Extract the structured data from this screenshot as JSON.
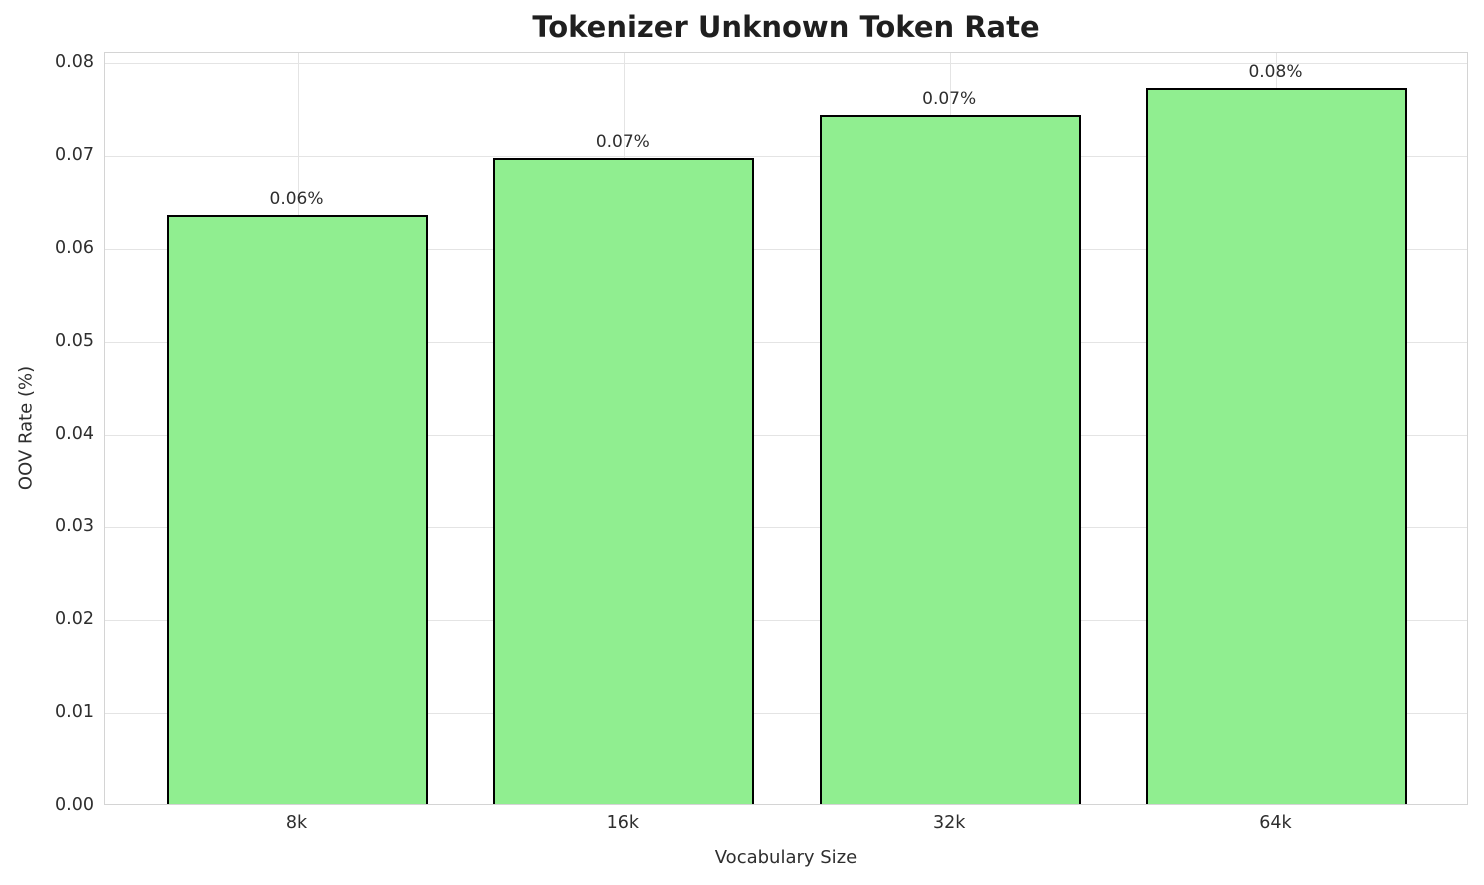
{
  "chart_data": {
    "type": "bar",
    "title": "Tokenizer Unknown Token Rate",
    "xlabel": "Vocabulary Size",
    "ylabel": "OOV Rate (%)",
    "categories": [
      "8k",
      "16k",
      "32k",
      "64k"
    ],
    "values": [
      0.0634,
      0.0696,
      0.0742,
      0.0771
    ],
    "bar_labels": [
      "0.06%",
      "0.07%",
      "0.07%",
      "0.08%"
    ],
    "x_positions": [
      0,
      1,
      2,
      3
    ],
    "xlim": [
      -0.59,
      3.59
    ],
    "ylim": [
      0,
      0.0811
    ],
    "yticks": [
      0.0,
      0.01,
      0.02,
      0.03,
      0.04,
      0.05,
      0.06,
      0.07,
      0.08
    ],
    "ytick_labels": [
      "0.00",
      "0.01",
      "0.02",
      "0.03",
      "0.04",
      "0.05",
      "0.06",
      "0.07",
      "0.08"
    ],
    "bar_width_units": 0.8,
    "bar_color": "#90EE90",
    "bar_edge_color": "#000000",
    "grid": true,
    "grid_color": "#e4e4e4",
    "spine_color": "#d4d4d4",
    "legend": null
  }
}
